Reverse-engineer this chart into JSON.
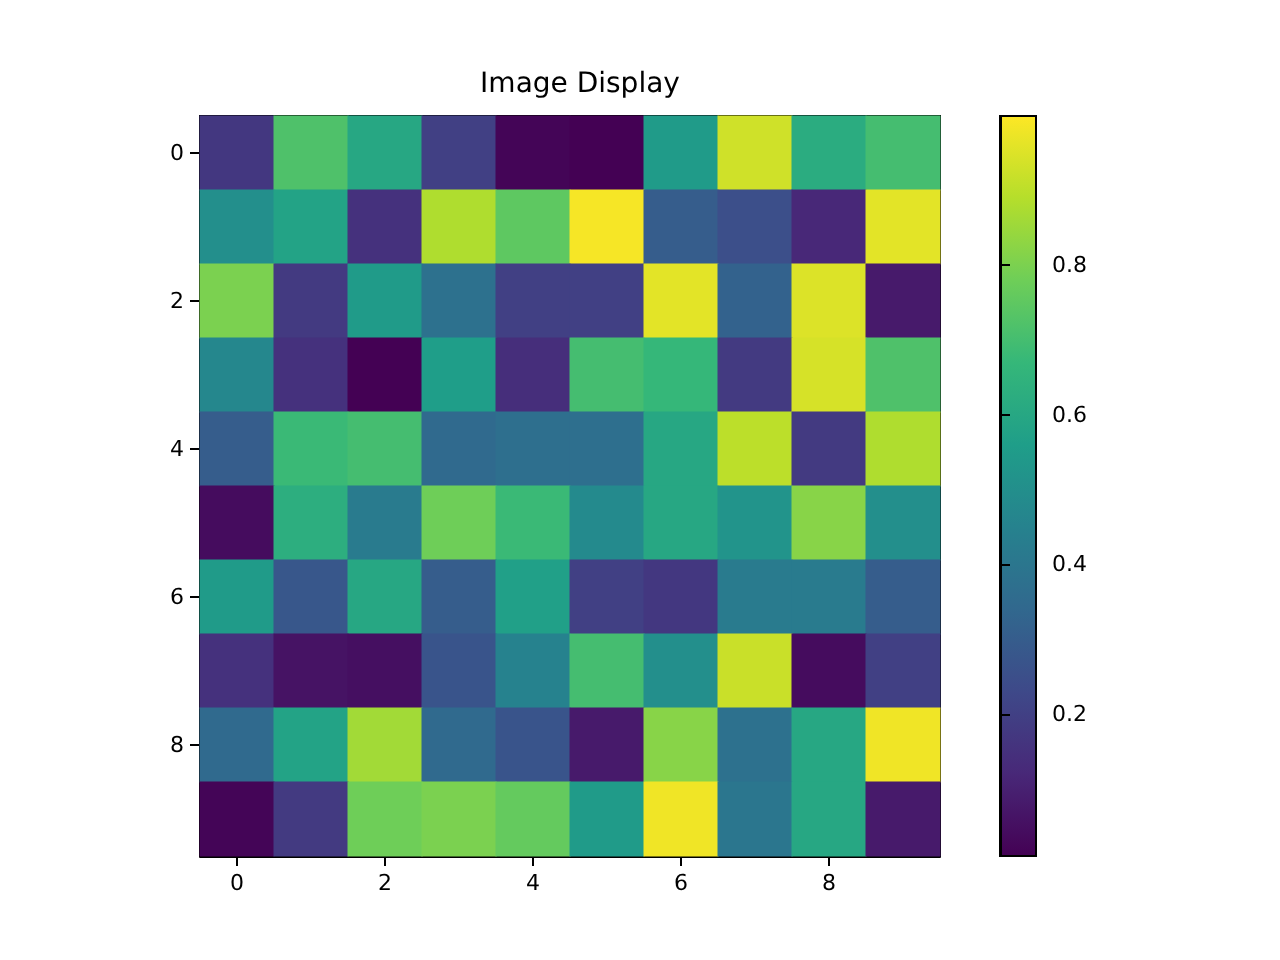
{
  "chart_data": {
    "type": "heatmap",
    "title": "Image Display",
    "categories": [
      "0",
      null,
      "2",
      null,
      "4",
      null,
      "6",
      null,
      "8",
      null
    ],
    "y_categories": [
      "0",
      null,
      "2",
      null,
      "4",
      null,
      "6",
      null,
      "8",
      null
    ],
    "cells": [
      [
        0.17,
        0.72,
        0.6,
        0.2,
        0.02,
        0.01,
        0.55,
        0.93,
        0.62,
        0.7
      ],
      [
        0.5,
        0.58,
        0.15,
        0.88,
        0.75,
        0.99,
        0.3,
        0.25,
        0.12,
        0.96
      ],
      [
        0.8,
        0.18,
        0.55,
        0.38,
        0.2,
        0.2,
        0.96,
        0.32,
        0.95,
        0.08
      ],
      [
        0.47,
        0.15,
        0.01,
        0.56,
        0.14,
        0.7,
        0.67,
        0.18,
        0.94,
        0.72
      ],
      [
        0.3,
        0.68,
        0.7,
        0.35,
        0.37,
        0.37,
        0.6,
        0.9,
        0.18,
        0.88
      ],
      [
        0.04,
        0.63,
        0.42,
        0.78,
        0.68,
        0.48,
        0.6,
        0.52,
        0.82,
        0.5
      ],
      [
        0.55,
        0.28,
        0.6,
        0.3,
        0.57,
        0.2,
        0.17,
        0.42,
        0.42,
        0.3
      ],
      [
        0.15,
        0.06,
        0.05,
        0.27,
        0.45,
        0.7,
        0.5,
        0.92,
        0.04,
        0.2
      ],
      [
        0.35,
        0.58,
        0.86,
        0.35,
        0.27,
        0.08,
        0.82,
        0.38,
        0.6,
        0.98
      ],
      [
        0.02,
        0.18,
        0.78,
        0.8,
        0.76,
        0.55,
        0.98,
        0.4,
        0.6,
        0.08
      ]
    ],
    "clim": [
      0.01,
      1.0
    ],
    "cticks": [
      0.2,
      0.4,
      0.6,
      0.8
    ],
    "grid": false
  }
}
